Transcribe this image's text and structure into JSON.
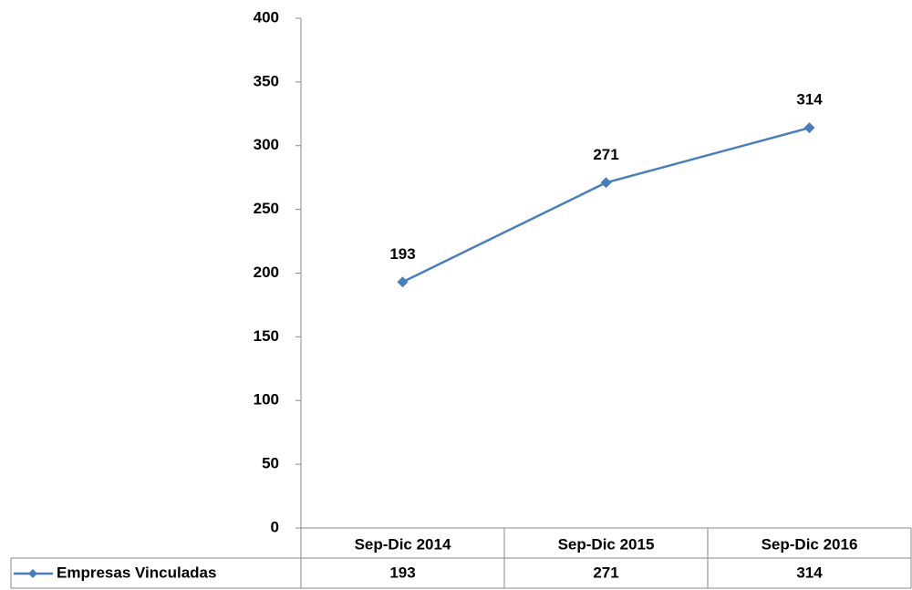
{
  "chart_data": {
    "type": "line",
    "categories": [
      "Sep-Dic 2014",
      "Sep-Dic 2015",
      "Sep-Dic 2016"
    ],
    "series": [
      {
        "name": "Empresas Vinculadas",
        "color": "#4a7ebb",
        "values": [
          193,
          271,
          314
        ]
      }
    ],
    "ylim": [
      0,
      400
    ],
    "yticks": [
      0,
      50,
      100,
      150,
      200,
      250,
      300,
      350,
      400
    ],
    "grid": false,
    "data_table": true
  }
}
